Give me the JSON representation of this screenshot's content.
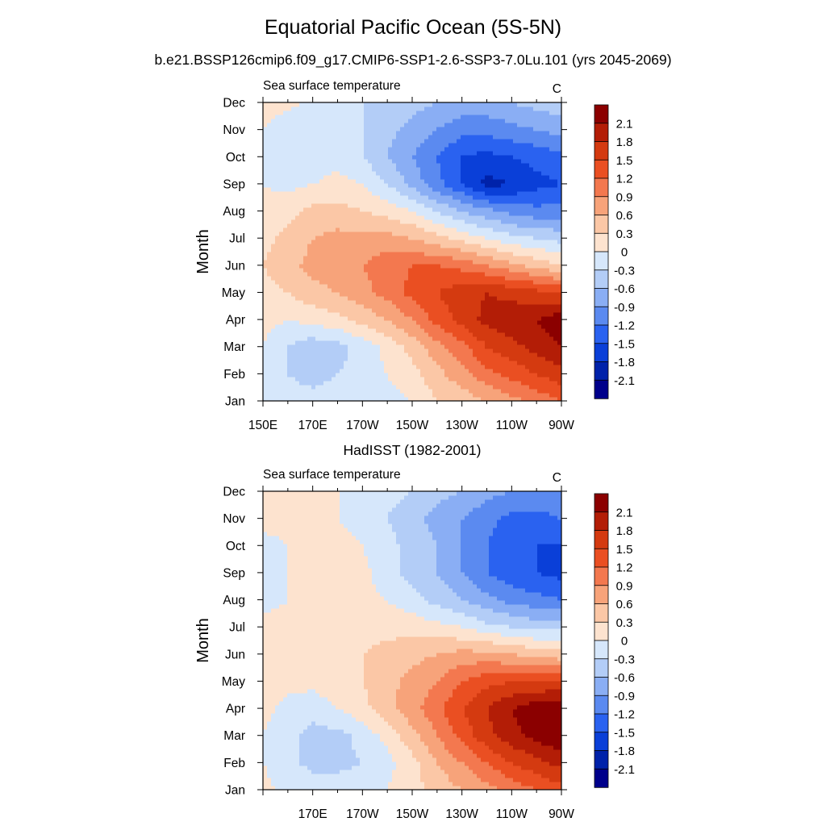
{
  "figure": {
    "title": "Equatorial Pacific Ocean (5S-5N)",
    "subtitle": "b.e21.BSSP126cmip6.f09_g17.CMIP6-SSP1-2.6-SSP3-7.0Lu.101 (yrs 2045-2069)"
  },
  "colors": {
    "levels": [
      "#00008b",
      "#0022aa",
      "#0a3fd8",
      "#2a62f0",
      "#5b8af0",
      "#8aaef4",
      "#b3cdf7",
      "#d6e7fb",
      "#fde3cf",
      "#fbc7a6",
      "#f7a37a",
      "#f3784f",
      "#ea4f22",
      "#d43a10",
      "#b31d06",
      "#8b0000"
    ]
  },
  "chart_data": [
    {
      "type": "heatmap",
      "panel_title": "",
      "left_label": "Sea surface temperature",
      "right_label": "C",
      "ylabel": "Month",
      "x_ticks": [
        "150E",
        "170E",
        "170W",
        "150W",
        "130W",
        "110W",
        "90W"
      ],
      "y_ticks": [
        "Jan",
        "Feb",
        "Mar",
        "Apr",
        "May",
        "Jun",
        "Jul",
        "Aug",
        "Sep",
        "Oct",
        "Nov",
        "Dec"
      ],
      "colorbar_labels": [
        "2.1",
        "1.8",
        "1.5",
        "1.2",
        "0.9",
        "0.6",
        "0.3",
        "0",
        "-0.3",
        "-0.6",
        "-0.9",
        "-1.2",
        "-1.5",
        "-1.8",
        "-2.1"
      ],
      "x": [
        150,
        160,
        170,
        180,
        190,
        200,
        210,
        220,
        230,
        240,
        250,
        260,
        270
      ],
      "y": [
        "Jan",
        "Feb",
        "Mar",
        "Apr",
        "May",
        "Jun",
        "Jul",
        "Aug",
        "Sep",
        "Oct",
        "Nov",
        "Dec"
      ],
      "z": [
        [
          0.0,
          -0.2,
          -0.2,
          -0.2,
          -0.1,
          -0.1,
          0.0,
          0.3,
          0.4,
          0.6,
          0.8,
          1.0,
          1.2
        ],
        [
          0.0,
          -0.3,
          -0.4,
          -0.3,
          -0.2,
          0.0,
          0.2,
          0.5,
          0.8,
          1.1,
          1.3,
          1.5,
          1.7
        ],
        [
          0.0,
          -0.3,
          -0.5,
          -0.4,
          -0.2,
          0.1,
          0.4,
          0.8,
          1.1,
          1.5,
          1.7,
          1.9,
          2.1
        ],
        [
          0.1,
          0.0,
          0.1,
          0.2,
          0.4,
          0.6,
          0.9,
          1.3,
          1.6,
          1.9,
          2.0,
          2.1,
          2.3
        ],
        [
          0.2,
          0.3,
          0.5,
          0.6,
          0.8,
          1.0,
          1.3,
          1.5,
          1.7,
          1.8,
          1.7,
          1.6,
          1.5
        ],
        [
          0.3,
          0.5,
          0.7,
          0.8,
          0.9,
          1.1,
          1.2,
          1.2,
          1.1,
          0.9,
          0.7,
          0.5,
          0.3
        ],
        [
          0.2,
          0.4,
          0.6,
          0.7,
          0.7,
          0.7,
          0.6,
          0.4,
          0.2,
          0.0,
          -0.2,
          -0.3,
          -0.4
        ],
        [
          0.1,
          0.2,
          0.4,
          0.4,
          0.3,
          0.2,
          0.0,
          -0.3,
          -0.6,
          -0.8,
          -1.0,
          -1.1,
          -1.1
        ],
        [
          0.0,
          -0.1,
          0.0,
          0.1,
          0.0,
          -0.3,
          -0.7,
          -1.1,
          -1.5,
          -1.9,
          -1.8,
          -1.6,
          -1.5
        ],
        [
          -0.1,
          -0.2,
          -0.2,
          -0.1,
          -0.3,
          -0.6,
          -0.9,
          -1.2,
          -1.5,
          -1.6,
          -1.5,
          -1.4,
          -1.3
        ],
        [
          0.0,
          -0.2,
          -0.2,
          -0.2,
          -0.3,
          -0.5,
          -0.7,
          -0.9,
          -1.1,
          -1.1,
          -1.0,
          -0.9,
          -0.8
        ],
        [
          0.1,
          0.1,
          -0.1,
          -0.2,
          -0.3,
          -0.4,
          -0.5,
          -0.6,
          -0.7,
          -0.7,
          -0.6,
          -0.5,
          -0.4
        ]
      ],
      "levels": [
        -2.1,
        -1.8,
        -1.5,
        -1.2,
        -0.9,
        -0.6,
        -0.3,
        0,
        0.3,
        0.6,
        0.9,
        1.2,
        1.5,
        1.8,
        2.1
      ]
    },
    {
      "type": "heatmap",
      "panel_title": "HadISST (1982-2001)",
      "left_label": "Sea surface temperature",
      "right_label": "C",
      "ylabel": "Month",
      "x_ticks": [
        "170E",
        "170W",
        "150W",
        "130W",
        "110W",
        "90W"
      ],
      "y_ticks": [
        "Jan",
        "Feb",
        "Mar",
        "Apr",
        "May",
        "Jun",
        "Jul",
        "Aug",
        "Sep",
        "Oct",
        "Nov",
        "Dec"
      ],
      "colorbar_labels": [
        "2.1",
        "1.8",
        "1.5",
        "1.2",
        "0.9",
        "0.6",
        "0.3",
        "0",
        "-0.3",
        "-0.6",
        "-0.9",
        "-1.2",
        "-1.5",
        "-1.8",
        "-2.1"
      ],
      "x": [
        150,
        160,
        170,
        180,
        190,
        200,
        210,
        220,
        230,
        240,
        250,
        260,
        270
      ],
      "y": [
        "Jan",
        "Feb",
        "Mar",
        "Apr",
        "May",
        "Jun",
        "Jul",
        "Aug",
        "Sep",
        "Oct",
        "Nov",
        "Dec"
      ],
      "z": [
        [
          0.1,
          -0.1,
          -0.1,
          -0.1,
          -0.1,
          0.0,
          0.2,
          0.4,
          0.6,
          0.8,
          1.0,
          1.2,
          1.4
        ],
        [
          0.0,
          -0.2,
          -0.4,
          -0.4,
          -0.3,
          -0.1,
          0.2,
          0.6,
          0.9,
          1.2,
          1.5,
          1.7,
          1.9
        ],
        [
          0.0,
          -0.2,
          -0.4,
          -0.4,
          -0.2,
          0.1,
          0.5,
          0.9,
          1.3,
          1.7,
          2.0,
          2.2,
          2.4
        ],
        [
          0.1,
          -0.1,
          -0.2,
          0.0,
          0.2,
          0.5,
          0.8,
          1.1,
          1.5,
          1.8,
          2.1,
          2.3,
          2.4
        ],
        [
          0.1,
          0.1,
          0.1,
          0.2,
          0.3,
          0.5,
          0.7,
          0.9,
          1.2,
          1.4,
          1.5,
          1.5,
          1.5
        ],
        [
          0.1,
          0.1,
          0.1,
          0.2,
          0.3,
          0.4,
          0.5,
          0.6,
          0.7,
          0.7,
          0.6,
          0.5,
          0.4
        ],
        [
          0.1,
          0.1,
          0.1,
          0.1,
          0.2,
          0.2,
          0.2,
          0.1,
          0.0,
          -0.2,
          -0.3,
          -0.4,
          -0.4
        ],
        [
          -0.1,
          0.0,
          0.1,
          0.1,
          0.1,
          0.0,
          -0.2,
          -0.4,
          -0.6,
          -0.8,
          -1.0,
          -1.1,
          -1.2
        ],
        [
          -0.1,
          0.0,
          0.1,
          0.3,
          0.1,
          -0.2,
          -0.4,
          -0.6,
          -0.9,
          -1.2,
          -1.4,
          -1.5,
          -1.6
        ],
        [
          -0.1,
          0.0,
          0.1,
          0.1,
          0.0,
          -0.2,
          -0.4,
          -0.6,
          -0.9,
          -1.2,
          -1.4,
          -1.5,
          -1.5
        ],
        [
          0.1,
          0.1,
          0.1,
          0.0,
          -0.1,
          -0.3,
          -0.5,
          -0.7,
          -0.9,
          -1.1,
          -1.3,
          -1.3,
          -1.2
        ],
        [
          0.1,
          0.1,
          0.1,
          0.0,
          -0.1,
          -0.2,
          -0.3,
          -0.5,
          -0.6,
          -0.8,
          -0.9,
          -1.0,
          -0.9
        ]
      ],
      "levels": [
        -2.1,
        -1.8,
        -1.5,
        -1.2,
        -0.9,
        -0.6,
        -0.3,
        0,
        0.3,
        0.6,
        0.9,
        1.2,
        1.5,
        1.8,
        2.1
      ]
    }
  ]
}
